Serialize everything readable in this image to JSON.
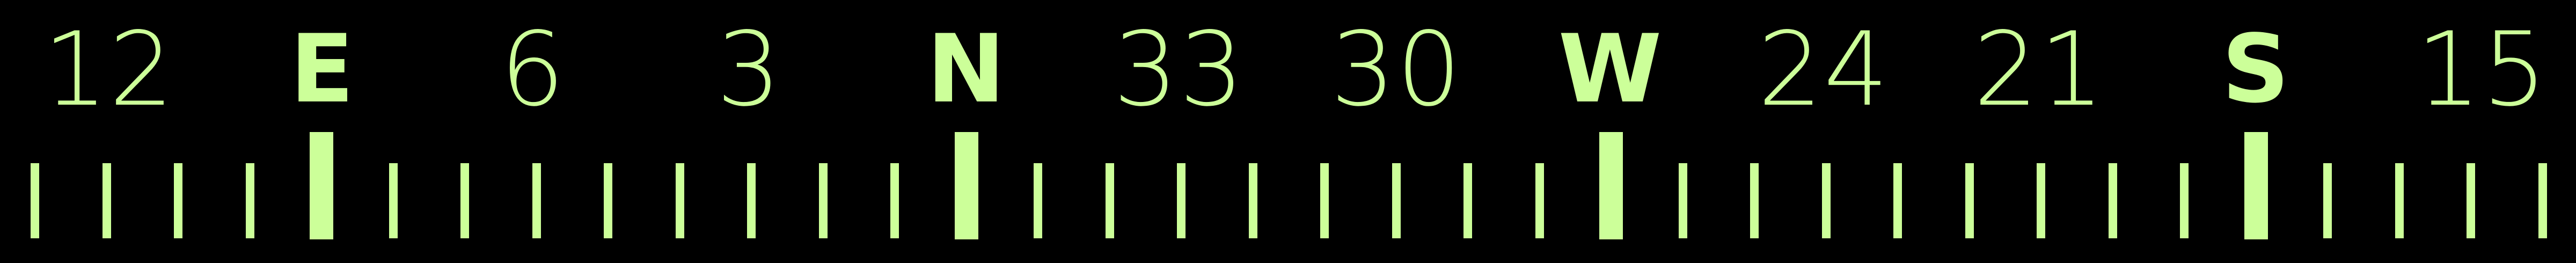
{
  "compass": {
    "accent_color": "#ccff99",
    "background_color": "#000000",
    "labels": [
      {
        "text": "12",
        "kind": "degree"
      },
      {
        "text": "E",
        "kind": "cardinal"
      },
      {
        "text": "6",
        "kind": "degree"
      },
      {
        "text": "3",
        "kind": "degree"
      },
      {
        "text": "N",
        "kind": "cardinal"
      },
      {
        "text": "33",
        "kind": "degree"
      },
      {
        "text": "30",
        "kind": "degree"
      },
      {
        "text": "W",
        "kind": "cardinal"
      },
      {
        "text": "24",
        "kind": "degree"
      },
      {
        "text": "21",
        "kind": "degree"
      },
      {
        "text": "S",
        "kind": "cardinal"
      },
      {
        "text": "15",
        "kind": "degree"
      }
    ]
  }
}
